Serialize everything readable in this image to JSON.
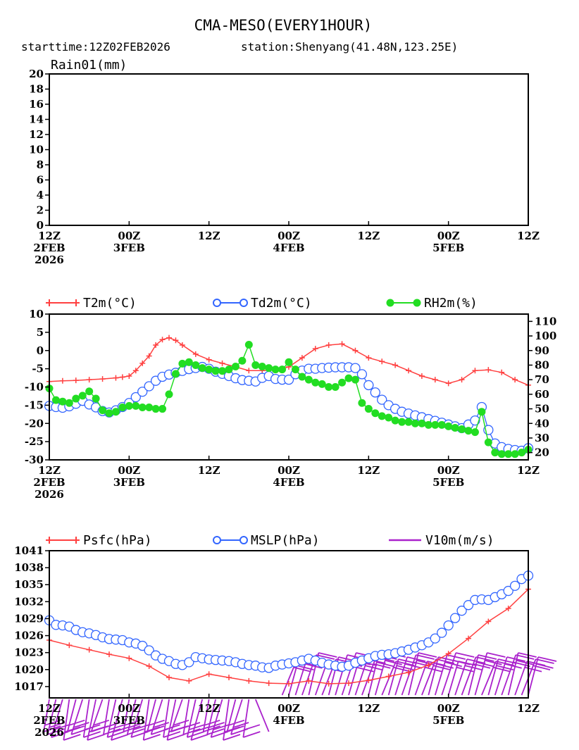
{
  "header": {
    "title": "CMA-MESO(EVERY1HOUR)",
    "starttime": "starttime:12Z02FEB2026",
    "station": "station:Shenyang(41.48N,123.25E)"
  },
  "colors": {
    "t2m": "#ff4040",
    "td2m": "#3366ff",
    "rh2m": "#22dd22",
    "psfc": "#ff4040",
    "mslp": "#3366ff",
    "v10m": "#aa22cc"
  },
  "x_ticks": [
    {
      "hour": 0,
      "l1": "12Z",
      "l2": "2FEB",
      "l3": "2026"
    },
    {
      "hour": 12,
      "l1": "00Z",
      "l2": "3FEB",
      "l3": ""
    },
    {
      "hour": 24,
      "l1": "12Z",
      "l2": "",
      "l3": ""
    },
    {
      "hour": 36,
      "l1": "00Z",
      "l2": "4FEB",
      "l3": ""
    },
    {
      "hour": 48,
      "l1": "12Z",
      "l2": "",
      "l3": ""
    },
    {
      "hour": 60,
      "l1": "00Z",
      "l2": "5FEB",
      "l3": ""
    },
    {
      "hour": 72,
      "l1": "12Z",
      "l2": "",
      "l3": ""
    }
  ],
  "chart_data": [
    {
      "type": "bar",
      "title": "Rain01(mm)",
      "xlim": [
        0,
        72
      ],
      "ylim": [
        0,
        20
      ],
      "yticks": [
        0,
        2,
        4,
        6,
        8,
        10,
        12,
        14,
        16,
        18,
        20
      ],
      "series": [
        {
          "name": "Rain01(mm)",
          "values": []
        }
      ]
    },
    {
      "type": "line",
      "xlim": [
        0,
        72
      ],
      "ylim": [
        -30,
        10
      ],
      "yticks": [
        -30,
        -25,
        -20,
        -15,
        -10,
        -5,
        0,
        5,
        10
      ],
      "y2lim": [
        15,
        115
      ],
      "y2ticks": [
        20,
        30,
        40,
        50,
        60,
        70,
        80,
        90,
        100,
        110
      ],
      "legend": [
        {
          "name": "T2m",
          "unit": "(°C)",
          "marker": "plus",
          "color": "#ff4040"
        },
        {
          "name": "Td2m",
          "unit": "(°C)",
          "marker": "circle",
          "color": "#3366ff"
        },
        {
          "name": "RH2m",
          "unit": "(%)",
          "marker": "dot",
          "color": "#22dd22"
        }
      ],
      "series": [
        {
          "name": "T2m",
          "axis": "left",
          "x": [
            0,
            2,
            4,
            6,
            8,
            10,
            11,
            12,
            13,
            14,
            15,
            16,
            17,
            18,
            19,
            20,
            22,
            24,
            26,
            28,
            30,
            32,
            34,
            36,
            38,
            40,
            42,
            44,
            46,
            48,
            50,
            52,
            54,
            56,
            58,
            60,
            62,
            64,
            66,
            68,
            70,
            72
          ],
          "y": [
            -8.5,
            -8.3,
            -8.2,
            -8.0,
            -7.8,
            -7.5,
            -7.3,
            -7.0,
            -5.5,
            -3.5,
            -1.5,
            1.5,
            3.0,
            3.5,
            2.8,
            1.5,
            -1.0,
            -2.5,
            -3.5,
            -4.5,
            -5.5,
            -5.5,
            -5.3,
            -4.5,
            -2.0,
            0.5,
            1.5,
            1.8,
            0.0,
            -2.0,
            -3.0,
            -4.0,
            -5.5,
            -7.0,
            -8.0,
            -9.0,
            -8.0,
            -5.5,
            -5.3,
            -6.0,
            -8.0,
            -9.5
          ]
        },
        {
          "name": "Td2m",
          "axis": "left",
          "x": [
            0,
            1,
            2,
            3,
            4,
            5,
            6,
            7,
            8,
            9,
            10,
            11,
            12,
            13,
            14,
            15,
            16,
            17,
            18,
            19,
            20,
            21,
            22,
            23,
            24,
            25,
            26,
            27,
            28,
            29,
            30,
            31,
            32,
            33,
            34,
            35,
            36,
            37,
            38,
            39,
            40,
            41,
            42,
            43,
            44,
            45,
            46,
            47,
            48,
            49,
            50,
            51,
            52,
            53,
            54,
            55,
            56,
            57,
            58,
            59,
            60,
            61,
            62,
            63,
            64,
            65,
            66,
            67,
            68,
            69,
            70,
            71,
            72
          ],
          "y": [
            -15.2,
            -15.5,
            -15.7,
            -15.3,
            -14.6,
            -13.8,
            -14.8,
            -15.6,
            -16.6,
            -17.0,
            -16.4,
            -15.5,
            -14.4,
            -12.8,
            -11.3,
            -9.8,
            -8.3,
            -7.2,
            -6.6,
            -6.1,
            -5.6,
            -5.1,
            -4.8,
            -4.5,
            -5.0,
            -5.8,
            -6.4,
            -7.0,
            -7.6,
            -8.1,
            -8.3,
            -8.5,
            -7.5,
            -7.0,
            -7.8,
            -8.0,
            -8.0,
            -6.5,
            -5.5,
            -5.0,
            -5.0,
            -4.8,
            -4.7,
            -4.6,
            -4.6,
            -4.6,
            -4.8,
            -6.5,
            -9.5,
            -11.5,
            -13.5,
            -15.0,
            -16.0,
            -16.8,
            -17.3,
            -17.8,
            -18.3,
            -18.8,
            -19.3,
            -19.8,
            -20.3,
            -20.8,
            -21.3,
            -20.3,
            -19.2,
            -15.5,
            -21.8,
            -25.5,
            -26.5,
            -27.0,
            -27.3,
            -27.5,
            -26.8
          ]
        },
        {
          "name": "RH2m",
          "axis": "right",
          "x": [
            0,
            1,
            2,
            3,
            4,
            5,
            6,
            7,
            8,
            9,
            10,
            11,
            12,
            13,
            14,
            15,
            16,
            17,
            18,
            19,
            20,
            21,
            22,
            23,
            24,
            25,
            26,
            27,
            28,
            29,
            30,
            31,
            32,
            33,
            34,
            35,
            36,
            37,
            38,
            39,
            40,
            41,
            42,
            43,
            44,
            45,
            46,
            47,
            48,
            49,
            50,
            51,
            52,
            53,
            54,
            55,
            56,
            57,
            58,
            59,
            60,
            61,
            62,
            63,
            64,
            65,
            66,
            67,
            68,
            69,
            70,
            71,
            72
          ],
          "y": [
            64,
            56,
            55,
            54,
            57,
            59,
            62,
            57,
            49,
            47,
            48,
            51,
            52,
            52,
            51,
            51,
            50,
            50,
            60,
            74,
            81,
            82,
            80,
            78,
            77,
            76,
            76,
            77,
            79,
            83,
            94,
            80,
            79,
            78,
            77,
            77,
            82,
            77,
            72,
            70,
            68,
            67,
            65,
            65,
            68,
            71,
            70,
            54,
            50,
            47,
            45,
            44,
            42,
            41,
            41,
            40,
            40,
            39,
            39,
            39,
            38,
            37,
            36,
            35,
            34,
            48,
            27,
            20,
            19,
            19,
            19,
            20,
            22
          ]
        }
      ]
    },
    {
      "type": "line",
      "xlim": [
        0,
        72
      ],
      "ylim": [
        1015,
        1041
      ],
      "yticks": [
        1017,
        1020,
        1023,
        1026,
        1029,
        1032,
        1035,
        1038,
        1041
      ],
      "legend": [
        {
          "name": "Psfc",
          "unit": "(hPa)",
          "marker": "plus",
          "color": "#ff4040"
        },
        {
          "name": "MSLP",
          "unit": "(hPa)",
          "marker": "circle",
          "color": "#3366ff"
        },
        {
          "name": "V10m",
          "unit": "(m/s)",
          "marker": "barb",
          "color": "#aa22cc"
        }
      ],
      "series": [
        {
          "name": "Psfc",
          "x": [
            0,
            3,
            6,
            9,
            12,
            15,
            18,
            21,
            24,
            27,
            30,
            33,
            36,
            39,
            42,
            45,
            48,
            51,
            54,
            57,
            60,
            63,
            66,
            69,
            72
          ],
          "y": [
            1025.2,
            1024.3,
            1023.5,
            1022.7,
            1022.0,
            1020.6,
            1018.6,
            1018.0,
            1019.2,
            1018.6,
            1018.0,
            1017.6,
            1017.5,
            1018.0,
            1017.5,
            1017.6,
            1018.1,
            1018.8,
            1019.5,
            1020.8,
            1022.8,
            1025.5,
            1028.5,
            1030.8,
            1034.2
          ]
        },
        {
          "name": "MSLP",
          "x": [
            0,
            1,
            2,
            3,
            4,
            5,
            6,
            7,
            8,
            9,
            10,
            11,
            12,
            13,
            14,
            15,
            16,
            17,
            18,
            19,
            20,
            21,
            22,
            23,
            24,
            25,
            26,
            27,
            28,
            29,
            30,
            31,
            32,
            33,
            34,
            35,
            36,
            37,
            38,
            39,
            40,
            41,
            42,
            43,
            44,
            45,
            46,
            47,
            48,
            49,
            50,
            51,
            52,
            53,
            54,
            55,
            56,
            57,
            58,
            59,
            60,
            61,
            62,
            63,
            64,
            65,
            66,
            67,
            68,
            69,
            70,
            71,
            72
          ],
          "y": [
            1028.7,
            1027.9,
            1027.8,
            1027.6,
            1027.0,
            1026.6,
            1026.4,
            1026.1,
            1025.7,
            1025.4,
            1025.3,
            1025.2,
            1024.8,
            1024.6,
            1024.2,
            1023.4,
            1022.5,
            1021.9,
            1021.5,
            1021.0,
            1020.8,
            1021.3,
            1022.2,
            1022.0,
            1021.8,
            1021.7,
            1021.6,
            1021.5,
            1021.3,
            1021.0,
            1020.8,
            1020.7,
            1020.4,
            1020.3,
            1020.7,
            1020.9,
            1021.1,
            1021.3,
            1021.6,
            1021.9,
            1021.6,
            1021.2,
            1020.9,
            1020.7,
            1020.5,
            1020.7,
            1021.2,
            1021.6,
            1022.0,
            1022.4,
            1022.6,
            1022.7,
            1022.9,
            1023.2,
            1023.5,
            1023.9,
            1024.3,
            1024.8,
            1025.5,
            1026.5,
            1027.8,
            1029.1,
            1030.4,
            1031.4,
            1032.3,
            1032.4,
            1032.3,
            1032.8,
            1033.3,
            1033.9,
            1034.8,
            1036.0,
            1036.6
          ]
        }
      ]
    }
  ]
}
